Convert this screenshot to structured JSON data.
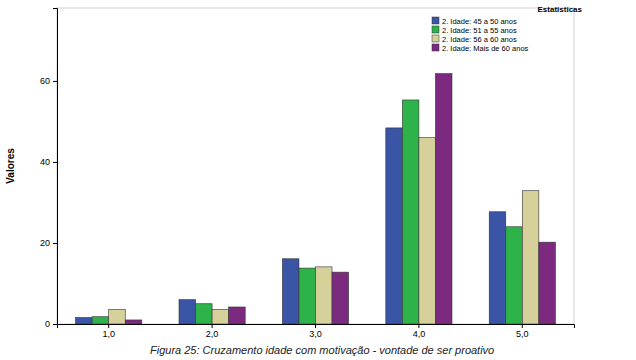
{
  "chart_data": {
    "type": "bar",
    "title": "Figura 25: Cruzamento idade com motivação - vontade de ser proativo",
    "y_label": "Valores",
    "legend_title": "Estatisticas",
    "categories": [
      "1,0",
      "2,0",
      "3,0",
      "4,0",
      "5,0"
    ],
    "series": [
      {
        "name": "2. Idade: 45 a 50 anos",
        "color": "#3a55a5",
        "values": [
          1.6,
          6.0,
          16.1,
          48.4,
          27.7
        ]
      },
      {
        "name": "2. Idade: 51 a 55 anos",
        "color": "#2db34a",
        "values": [
          1.8,
          5.0,
          13.8,
          55.3,
          24.0
        ]
      },
      {
        "name": "2. Idade: 56 a 60 anos",
        "color": "#d6d09a",
        "values": [
          3.6,
          3.6,
          14.1,
          46.0,
          32.9
        ]
      },
      {
        "name": "2. Idade: Mais de 60 anos",
        "color": "#7c2a80",
        "values": [
          1.0,
          4.2,
          12.8,
          61.8,
          20.2
        ]
      }
    ],
    "ylim": [
      0,
      78
    ],
    "yticks": [
      0,
      20,
      40,
      60
    ],
    "grid": false,
    "legend": "upper right"
  }
}
